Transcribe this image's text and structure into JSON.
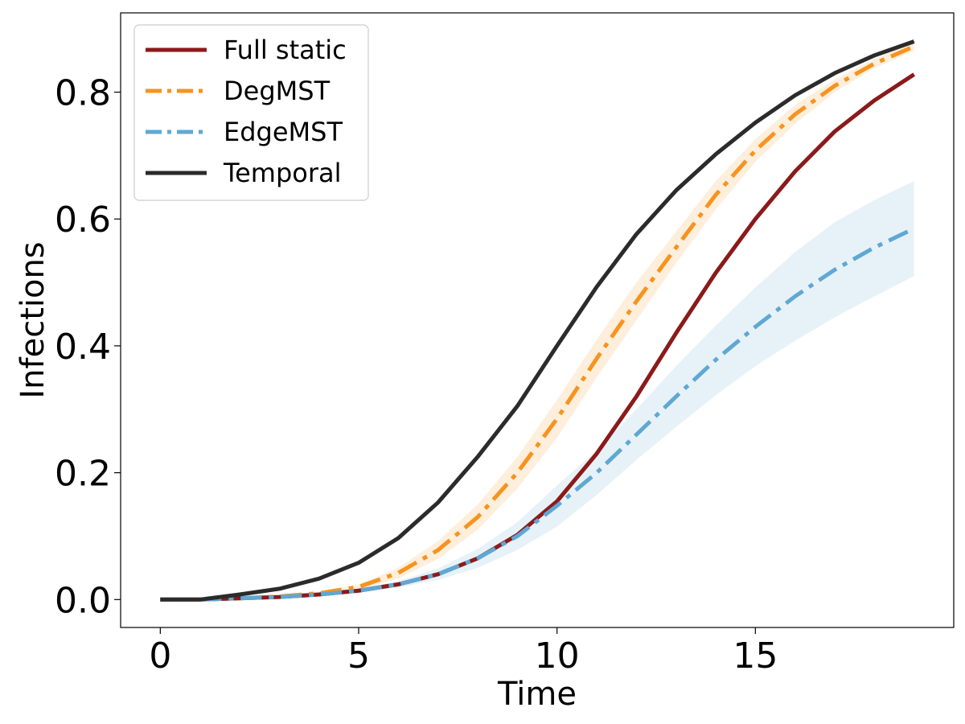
{
  "chart_data": {
    "type": "line",
    "title": "",
    "xlabel": "Time",
    "ylabel": "Infections",
    "xlim": [
      -1,
      20
    ],
    "ylim": [
      -0.044,
      0.925
    ],
    "xticks": [
      0,
      5,
      10,
      15
    ],
    "yticks": [
      0.0,
      0.2,
      0.4,
      0.6,
      0.8
    ],
    "xtick_labels": [
      "0",
      "5",
      "10",
      "15"
    ],
    "ytick_labels": [
      "0.0",
      "0.2",
      "0.4",
      "0.6",
      "0.8"
    ],
    "grid": false,
    "legend_position": "top-left",
    "x": [
      0,
      1,
      2,
      3,
      4,
      5,
      6,
      7,
      8,
      9,
      10,
      11,
      12,
      13,
      14,
      15,
      16,
      17,
      18,
      19
    ],
    "series": [
      {
        "name": "Full static",
        "color": "#8b1a1a",
        "style": "solid",
        "values": [
          0.0,
          0.0,
          0.002,
          0.004,
          0.008,
          0.014,
          0.024,
          0.04,
          0.065,
          0.102,
          0.155,
          0.23,
          0.32,
          0.42,
          0.515,
          0.6,
          0.675,
          0.738,
          0.787,
          0.828
        ],
        "band_lower": [
          0.0,
          0.0,
          0.002,
          0.004,
          0.008,
          0.014,
          0.023,
          0.039,
          0.064,
          0.1,
          0.152,
          0.227,
          0.316,
          0.416,
          0.511,
          0.596,
          0.672,
          0.735,
          0.785,
          0.826
        ],
        "band_upper": [
          0.0,
          0.0,
          0.002,
          0.004,
          0.008,
          0.014,
          0.025,
          0.041,
          0.066,
          0.104,
          0.158,
          0.233,
          0.324,
          0.424,
          0.519,
          0.604,
          0.678,
          0.741,
          0.789,
          0.83
        ]
      },
      {
        "name": "DegMST",
        "color": "#f7931e",
        "style": "dashdot",
        "values": [
          0.0,
          0.0,
          0.002,
          0.005,
          0.01,
          0.02,
          0.042,
          0.078,
          0.13,
          0.2,
          0.285,
          0.38,
          0.47,
          0.555,
          0.638,
          0.708,
          0.765,
          0.81,
          0.845,
          0.872
        ],
        "band_lower": [
          0.0,
          0.0,
          0.002,
          0.004,
          0.008,
          0.016,
          0.033,
          0.064,
          0.11,
          0.175,
          0.255,
          0.35,
          0.44,
          0.53,
          0.615,
          0.69,
          0.75,
          0.8,
          0.838,
          0.865
        ],
        "band_upper": [
          0.0,
          0.0,
          0.002,
          0.006,
          0.012,
          0.024,
          0.05,
          0.092,
          0.15,
          0.225,
          0.315,
          0.41,
          0.5,
          0.58,
          0.66,
          0.726,
          0.78,
          0.82,
          0.852,
          0.879
        ]
      },
      {
        "name": "EdgeMST",
        "color": "#5fa8d3",
        "style": "dashdot",
        "values": [
          0.0,
          0.0,
          0.002,
          0.004,
          0.008,
          0.014,
          0.024,
          0.04,
          0.065,
          0.1,
          0.148,
          0.2,
          0.26,
          0.32,
          0.378,
          0.43,
          0.478,
          0.52,
          0.555,
          0.585
        ],
        "band_lower": [
          0.0,
          0.0,
          0.002,
          0.003,
          0.006,
          0.011,
          0.019,
          0.031,
          0.05,
          0.078,
          0.115,
          0.165,
          0.22,
          0.272,
          0.322,
          0.368,
          0.408,
          0.445,
          0.478,
          0.51
        ],
        "band_upper": [
          0.0,
          0.0,
          0.002,
          0.005,
          0.01,
          0.017,
          0.029,
          0.049,
          0.08,
          0.122,
          0.18,
          0.235,
          0.3,
          0.368,
          0.432,
          0.492,
          0.548,
          0.595,
          0.63,
          0.66
        ]
      },
      {
        "name": "Temporal",
        "color": "#2b2b2b",
        "style": "solid",
        "values": [
          0.0,
          0.0,
          0.008,
          0.017,
          0.033,
          0.058,
          0.097,
          0.153,
          0.225,
          0.305,
          0.4,
          0.493,
          0.576,
          0.645,
          0.702,
          0.752,
          0.795,
          0.83,
          0.858,
          0.88
        ]
      }
    ]
  }
}
